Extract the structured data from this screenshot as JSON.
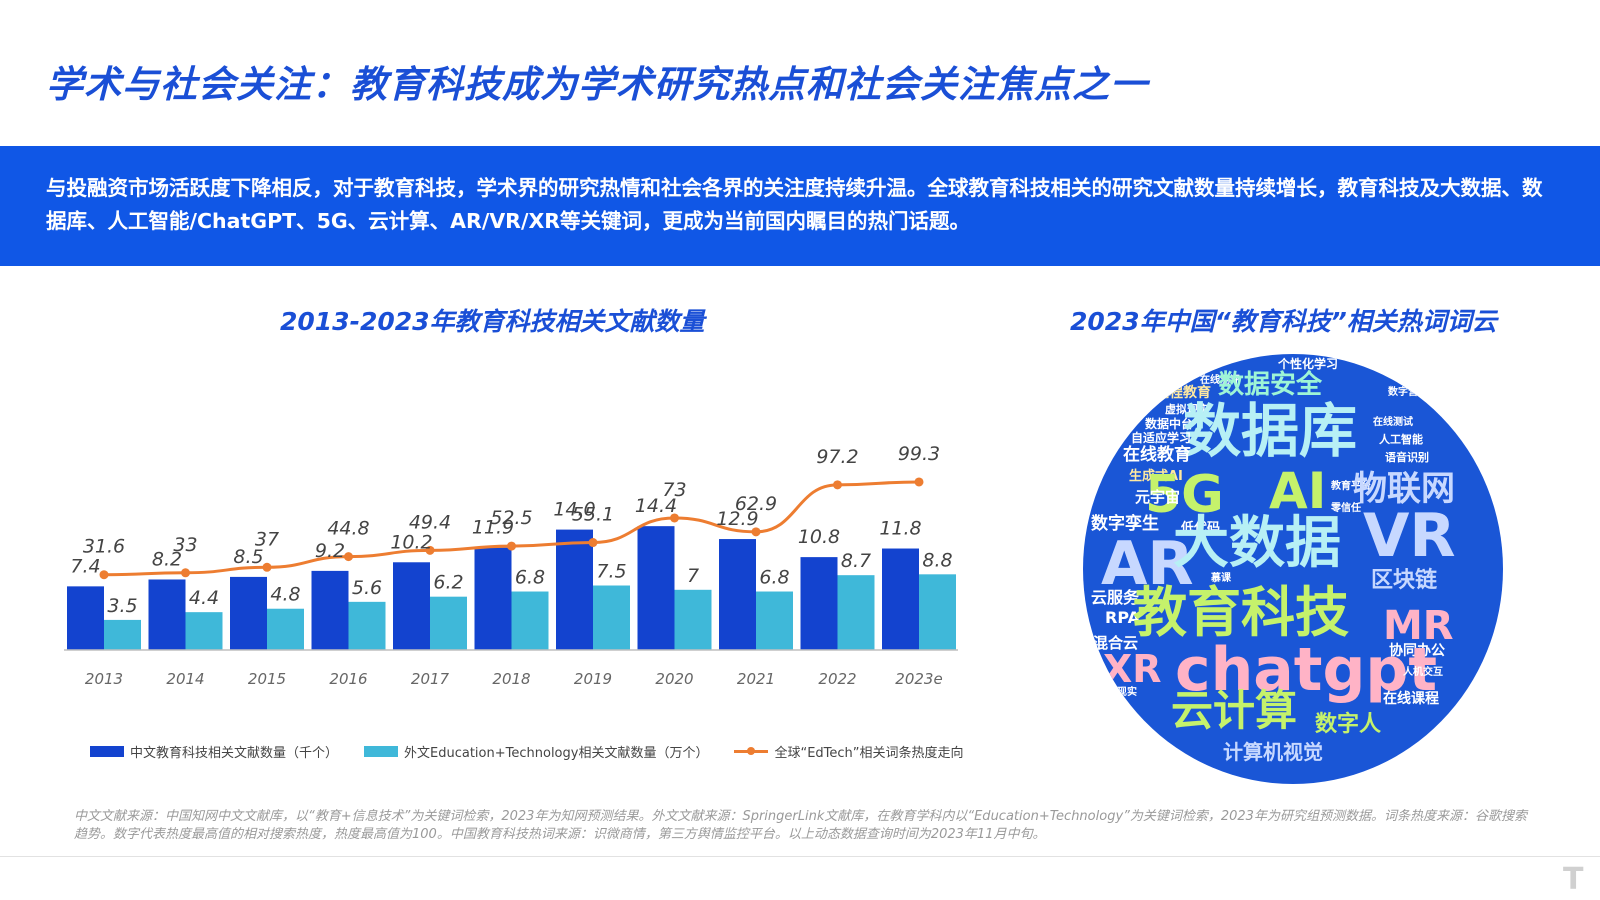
{
  "header": {
    "title": "学术与社会关注：教育科技成为学术研究热点和社会关注焦点之一",
    "summary": "与投融资市场活跃度下降相反，对于教育科技，学术界的研究热情和社会各界的关注度持续升温。全球教育科技相关的研究文献数量持续增长，教育科技及大数据、数据库、人工智能/ChatGPT、5G、云计算、AR/VR/XR等关键词，更成为当前国内瞩目的热门话题。"
  },
  "colors": {
    "accent": "#1057e6",
    "bar_cn": "#1343cf",
    "bar_en": "#3fb8d9",
    "line": "#ed7d31"
  },
  "chart_data": {
    "type": "bar",
    "title": "2013-2023年教育科技相关文献数量",
    "categories": [
      "2013",
      "2014",
      "2015",
      "2016",
      "2017",
      "2018",
      "2019",
      "2020",
      "2021",
      "2022",
      "2023e"
    ],
    "series": [
      {
        "name": "中文教育科技相关文献数量（千个）",
        "type": "bar",
        "values": [
          7.4,
          8.2,
          8.5,
          9.2,
          10.2,
          11.9,
          14.0,
          14.4,
          12.9,
          10.8,
          11.8
        ]
      },
      {
        "name": "外文Education+Technology相关文献数量（万个）",
        "type": "bar",
        "values": [
          3.5,
          4.4,
          4.8,
          5.6,
          6.2,
          6.8,
          7.5,
          7,
          6.8,
          8.7,
          8.8
        ]
      },
      {
        "name": "全球“EdTech”相关词条热度走向",
        "type": "line",
        "values": [
          31.6,
          33,
          37,
          44.8,
          49.4,
          52.5,
          55.1,
          73,
          62.9,
          97.2,
          99.3
        ]
      }
    ],
    "value_labels": {
      "cn": [
        "7.4",
        "8.2",
        "8.5",
        "9.2",
        "10.2",
        "11.9",
        "14.0",
        "14.4",
        "12.9",
        "10.8",
        "11.8"
      ],
      "en": [
        "3.5",
        "4.4",
        "4.8",
        "5.6",
        "6.2",
        "6.8",
        "7.5",
        "7",
        "6.8",
        "8.7",
        "8.8"
      ],
      "line": [
        "31.6",
        "33",
        "37",
        "44.8",
        "49.4",
        "52.5",
        "55.1",
        "73",
        "62.9",
        "97.2",
        "99.3"
      ]
    },
    "legend_position": "bottom",
    "grid": false
  },
  "word_cloud": {
    "title": "2023年中国“教育科技”相关热词词云",
    "words": [
      {
        "text": "个性化学习",
        "color": "#ffffff"
      },
      {
        "text": "在线测评",
        "color": "#ffffff"
      },
      {
        "text": "远程教育",
        "color": "#ffe9a0"
      },
      {
        "text": "数据安全",
        "color": "#9ef5d6"
      },
      {
        "text": "数字营销",
        "color": "#ffffff"
      },
      {
        "text": "虚拟现实",
        "color": "#ffffff"
      },
      {
        "text": "数据中台",
        "color": "#ffffff"
      },
      {
        "text": "数据库",
        "color": "#b7f0f5"
      },
      {
        "text": "在线测试",
        "color": "#ffffff"
      },
      {
        "text": "自适应学习",
        "color": "#ffffff"
      },
      {
        "text": "人工智能",
        "color": "#ffffff"
      },
      {
        "text": "在线教育",
        "color": "#ffffff"
      },
      {
        "text": "语音识别",
        "color": "#ffffff"
      },
      {
        "text": "生成式AI",
        "color": "#ffe9a0"
      },
      {
        "text": "教育平台",
        "color": "#ffffff"
      },
      {
        "text": "5G",
        "color": "#c5f26b"
      },
      {
        "text": "AI",
        "color": "#c5f26b"
      },
      {
        "text": "物联网",
        "color": "#c7d8ff"
      },
      {
        "text": "元宇宙",
        "color": "#ffffff"
      },
      {
        "text": "零信任",
        "color": "#ffffff"
      },
      {
        "text": "数字孪生",
        "color": "#ffffff"
      },
      {
        "text": "低代码",
        "color": "#ffffff"
      },
      {
        "text": "AR",
        "color": "#c7d8ff"
      },
      {
        "text": "大数据",
        "color": "#b7f0f5"
      },
      {
        "text": "VR",
        "color": "#c7d8ff"
      },
      {
        "text": "慕课",
        "color": "#ffffff"
      },
      {
        "text": "区块链",
        "color": "#c7d8ff"
      },
      {
        "text": "云服务",
        "color": "#ffffff"
      },
      {
        "text": "RPA",
        "color": "#ffffff"
      },
      {
        "text": "教育科技",
        "color": "#c5f26b"
      },
      {
        "text": "MR",
        "color": "#ffb3c6"
      },
      {
        "text": "混合云",
        "color": "#ffffff"
      },
      {
        "text": "协同办公",
        "color": "#ffffff"
      },
      {
        "text": "XR",
        "color": "#ffb3c6"
      },
      {
        "text": "chatgpt",
        "color": "#ffb3c6"
      },
      {
        "text": "人机交互",
        "color": "#ffffff"
      },
      {
        "text": "增强现实",
        "color": "#ffffff"
      },
      {
        "text": "在线课程",
        "color": "#ffffff"
      },
      {
        "text": "云计算",
        "color": "#c5f26b"
      },
      {
        "text": "数字人",
        "color": "#c5f26b"
      },
      {
        "text": "计算机视觉",
        "color": "#c7d8ff"
      }
    ]
  },
  "footer": {
    "source": "中文文献来源：中国知网中文文献库，以“教育+信息技术”为关键词检索，2023年为知网预测结果。外文文献来源：SpringerLink文献库，在教育学科内以“Education+Technology”为关键词检索，2023年为研究组预测数据。词条热度来源：谷歌搜索趋势。数字代表热度最高值的相对搜索热度，热度最高值为100。中国教育科技热词来源：识微商情，第三方舆情监控平台。以上动态数据查询时间为2023年11月中旬。",
    "logo": "T"
  }
}
